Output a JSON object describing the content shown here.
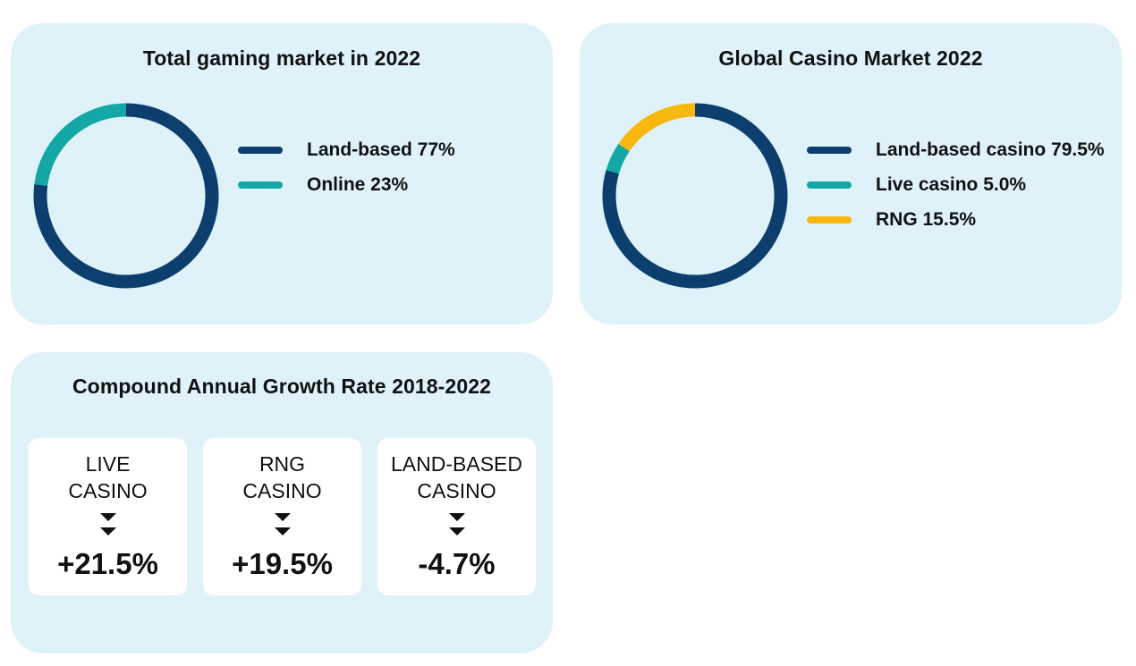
{
  "colors": {
    "card_bg": "#e0f2f9",
    "land_based": "#0d3f6e",
    "online": "#13a8a6",
    "live_casino": "#13a8a6",
    "rng": "#f7b90f"
  },
  "chart_data": [
    {
      "type": "pie",
      "style": "donut",
      "title": "Total gaming market in 2022",
      "legend_placement": "right",
      "categories": [
        "Land-based",
        "Online"
      ],
      "values": [
        77,
        23
      ],
      "unit": "%",
      "colors": [
        "#0d3f6e",
        "#13a8a6"
      ],
      "legend": [
        "Land-based 77%",
        "Online 23%"
      ]
    },
    {
      "type": "pie",
      "style": "donut",
      "title": "Global Casino Market 2022",
      "legend_placement": "right",
      "categories": [
        "Land-based casino",
        "Live casino",
        "RNG"
      ],
      "values": [
        79.5,
        5.0,
        15.5
      ],
      "unit": "%",
      "colors": [
        "#0d3f6e",
        "#13a8a6",
        "#f7b90f"
      ],
      "legend": [
        "Land-based casino 79.5%",
        "Live casino 5.0%",
        "RNG 15.5%"
      ]
    },
    {
      "type": "table",
      "title": "Compound Annual Growth Rate 2018-2022",
      "rows": [
        {
          "name_line1": "LIVE",
          "name_line2": "CASINO",
          "value_label": "+21.5%",
          "value": 21.5
        },
        {
          "name_line1": "RNG",
          "name_line2": "CASINO",
          "value_label": "+19.5%",
          "value": 19.5
        },
        {
          "name_line1": "LAND-BASED",
          "name_line2": "CASINO",
          "value_label": "-4.7%",
          "value": -4.7
        }
      ]
    }
  ]
}
